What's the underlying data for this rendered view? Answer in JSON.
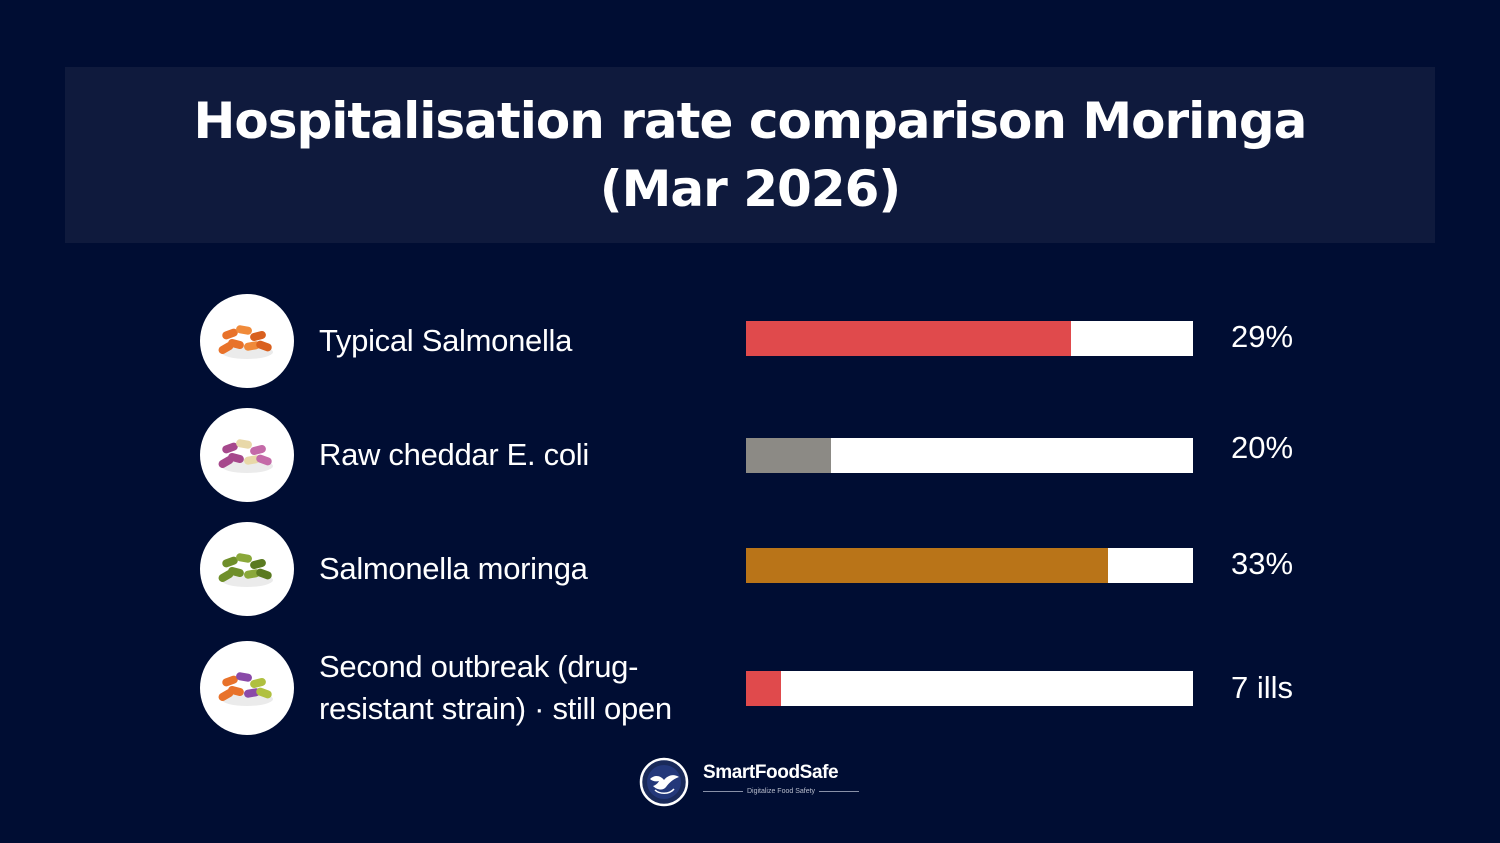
{
  "chart_data": {
    "type": "bar",
    "orientation": "horizontal",
    "title": "Hospitalisation rate comparison Moringa (Mar 2026)",
    "categories": [
      "Typical Salmonella",
      "Raw cheddar E. coli",
      "Salmonella moringa",
      "Second outbreak (drug-resistant strain) · still open"
    ],
    "series": [
      {
        "values": [
          29,
          20,
          33,
          7
        ],
        "value_labels": [
          "29%",
          "20%",
          "33%",
          "7 ills"
        ],
        "fill_fraction": [
          0.727,
          0.19,
          0.81,
          0.078
        ],
        "colors": [
          "#e04a4c",
          "#8c8a85",
          "#b97418",
          "#e04a4c"
        ]
      }
    ],
    "icons": [
      "bacteria-orange-icon",
      "bacteria-purple-icon",
      "bacteria-green-icon",
      "bacteria-mixed-icon"
    ],
    "grid": false,
    "legend": "none"
  },
  "brand": {
    "name": "SmartFoodSafe",
    "tagline": "Digitalize Food Safety",
    "icon": "globe-eagle-logo"
  },
  "colors": {
    "background": "#000d33",
    "title_band": "#0f1a3d",
    "track": "#ffffff",
    "text": "#ffffff"
  }
}
